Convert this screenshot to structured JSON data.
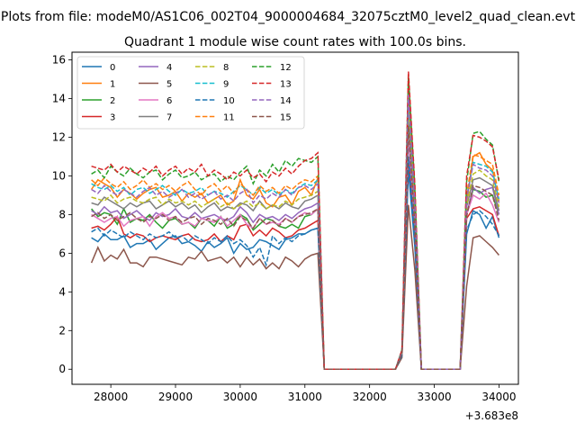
{
  "chart_data": {
    "type": "line",
    "suptitle": "Plots from file: modeM0/AS1C06_002T04_9000004684_32075cztM0_level2_quad_clean.evt",
    "title": "Quadrant 1 module wise count rates with 100.0s bins.",
    "xlabel": "",
    "ylabel": "",
    "x_offset_label": "+3.683e8",
    "xlim": [
      27400,
      34300
    ],
    "ylim": [
      -0.78,
      16.4
    ],
    "xticks": [
      28000,
      29000,
      30000,
      31000,
      32000,
      33000,
      34000
    ],
    "yticks": [
      0,
      2,
      4,
      6,
      8,
      10,
      12,
      14,
      16
    ],
    "legend_placement": "upper-left",
    "legend_columns": 4,
    "grid": false,
    "x": [
      27700,
      27800,
      27900,
      28000,
      28100,
      28200,
      28300,
      28400,
      28500,
      28600,
      28700,
      28800,
      28900,
      29000,
      29100,
      29200,
      29300,
      29400,
      29500,
      29600,
      29700,
      29800,
      29900,
      30000,
      30100,
      30200,
      30300,
      30400,
      30500,
      30600,
      30700,
      30800,
      30900,
      31000,
      31100,
      31200,
      31300,
      31400,
      31500,
      31600,
      31700,
      31800,
      31900,
      32000,
      32100,
      32200,
      32300,
      32400,
      32500,
      32600,
      32700,
      32800,
      32900,
      33000,
      33100,
      33200,
      33300,
      33400,
      33500,
      33600,
      33700,
      33800,
      33900,
      34000
    ],
    "series": [
      {
        "name": "0",
        "color": "#1f77b4",
        "dash": "solid",
        "values": [
          6.8,
          6.6,
          7.0,
          6.7,
          6.7,
          6.9,
          6.3,
          6.5,
          6.5,
          6.7,
          6.2,
          6.5,
          6.8,
          6.9,
          6.5,
          6.6,
          6.4,
          6.1,
          6.6,
          6.3,
          6.5,
          6.8,
          6.0,
          6.5,
          6.2,
          6.3,
          6.7,
          6.6,
          6.4,
          6.2,
          6.7,
          6.8,
          7.0,
          7.0,
          7.2,
          7.3,
          0,
          0,
          0,
          0,
          0,
          0,
          0,
          0,
          0,
          0,
          0,
          0,
          0.8,
          10.3,
          6.3,
          0,
          0,
          0,
          0,
          0,
          0,
          0,
          7.0,
          8.2,
          8.0,
          7.3,
          7.9,
          6.8
        ]
      },
      {
        "name": "1",
        "color": "#ff7f0e",
        "dash": "solid",
        "values": [
          9.3,
          9.8,
          9.6,
          9.4,
          8.9,
          9.3,
          9.1,
          8.8,
          9.1,
          9.3,
          9.4,
          8.9,
          9.0,
          9.2,
          8.7,
          9.1,
          8.9,
          9.1,
          8.6,
          8.8,
          9.0,
          8.5,
          8.7,
          9.8,
          9.0,
          8.8,
          9.3,
          8.6,
          8.4,
          8.9,
          9.0,
          8.5,
          9.2,
          9.4,
          9.0,
          9.9,
          0,
          0,
          0,
          0,
          0,
          0,
          0,
          0,
          0,
          0,
          0,
          0,
          0.8,
          12.8,
          8.0,
          0,
          0,
          0,
          0,
          0,
          0,
          0,
          8.6,
          11.0,
          11.2,
          10.6,
          10.3,
          8.7
        ]
      },
      {
        "name": "2",
        "color": "#2ca02c",
        "dash": "solid",
        "values": [
          8.3,
          7.9,
          8.1,
          8.0,
          7.5,
          8.3,
          7.6,
          7.8,
          7.7,
          8.0,
          7.6,
          7.3,
          7.7,
          7.8,
          7.5,
          7.6,
          7.3,
          7.8,
          7.7,
          7.4,
          7.9,
          7.3,
          7.5,
          8.0,
          7.8,
          7.2,
          7.5,
          7.8,
          7.7,
          7.4,
          7.3,
          7.5,
          7.3,
          7.9,
          8.0,
          8.3,
          0,
          0,
          0,
          0,
          0,
          0,
          0,
          0,
          0,
          0,
          0,
          0,
          0.8,
          13.2,
          7.5,
          0,
          0,
          0,
          0,
          0,
          0,
          0,
          8.0,
          9.3,
          9.2,
          8.9,
          9.0,
          8.0
        ]
      },
      {
        "name": "3",
        "color": "#d62728",
        "dash": "solid",
        "values": [
          7.3,
          7.4,
          7.2,
          7.5,
          7.9,
          7.0,
          6.8,
          7.0,
          6.9,
          6.6,
          6.8,
          6.9,
          6.8,
          6.7,
          6.9,
          7.0,
          6.7,
          6.6,
          6.7,
          7.0,
          6.6,
          6.9,
          6.7,
          7.4,
          7.5,
          6.9,
          7.2,
          6.9,
          7.3,
          7.1,
          6.8,
          6.9,
          7.2,
          7.3,
          7.5,
          7.7,
          0,
          0,
          0,
          0,
          0,
          0,
          0,
          0,
          0,
          0,
          0,
          0,
          0.8,
          11.0,
          6.8,
          0,
          0,
          0,
          0,
          0,
          0,
          0,
          7.8,
          8.3,
          8.4,
          8.2,
          8.0,
          6.9
        ]
      },
      {
        "name": "4",
        "color": "#9467bd",
        "dash": "solid",
        "values": [
          8.2,
          8.0,
          8.4,
          8.1,
          8.2,
          7.8,
          8.0,
          8.2,
          7.9,
          7.7,
          8.1,
          7.9,
          8.0,
          8.3,
          7.9,
          7.8,
          8.1,
          7.8,
          7.9,
          8.0,
          7.8,
          7.7,
          7.9,
          8.4,
          8.1,
          7.6,
          8.0,
          7.8,
          7.9,
          7.7,
          8.0,
          7.8,
          8.1,
          8.3,
          8.4,
          8.6,
          0,
          0,
          0,
          0,
          0,
          0,
          0,
          0,
          0,
          0,
          0,
          0,
          0.8,
          12.0,
          7.3,
          0,
          0,
          0,
          0,
          0,
          0,
          0,
          8.0,
          9.4,
          9.1,
          9.3,
          9.4,
          8.0
        ]
      },
      {
        "name": "5",
        "color": "#8c564b",
        "dash": "solid",
        "values": [
          5.5,
          6.3,
          5.6,
          5.9,
          5.7,
          6.2,
          5.5,
          5.5,
          5.3,
          5.8,
          5.8,
          5.7,
          5.6,
          5.5,
          5.4,
          5.8,
          5.7,
          6.1,
          5.6,
          5.7,
          5.8,
          5.5,
          5.8,
          5.3,
          5.8,
          5.4,
          5.7,
          5.2,
          5.5,
          5.2,
          5.8,
          5.6,
          5.3,
          5.7,
          5.9,
          6.0,
          0,
          0,
          0,
          0,
          0,
          0,
          0,
          0,
          0,
          0,
          0,
          0,
          0.6,
          8.5,
          5.1,
          0,
          0,
          0,
          0,
          0,
          0,
          0,
          4.3,
          6.8,
          6.9,
          6.6,
          6.3,
          5.9
        ]
      },
      {
        "name": "6",
        "color": "#e377c2",
        "dash": "solid",
        "values": [
          8.0,
          7.8,
          7.6,
          7.8,
          7.9,
          7.4,
          7.7,
          7.8,
          7.9,
          7.4,
          7.9,
          8.1,
          7.8,
          7.9,
          7.5,
          7.6,
          7.4,
          7.8,
          7.7,
          7.6,
          7.9,
          7.4,
          7.7,
          8.0,
          7.5,
          7.3,
          7.8,
          7.5,
          7.6,
          7.5,
          7.8,
          7.6,
          7.9,
          8.1,
          8.0,
          8.3,
          0,
          0,
          0,
          0,
          0,
          0,
          0,
          0,
          0,
          0,
          0,
          0,
          0.8,
          12.3,
          7.6,
          0,
          0,
          0,
          0,
          0,
          0,
          0,
          8.0,
          9.0,
          8.8,
          9.1,
          8.5,
          7.6
        ]
      },
      {
        "name": "7",
        "color": "#7f7f7f",
        "dash": "solid",
        "values": [
          8.6,
          8.5,
          8.9,
          8.7,
          8.5,
          8.3,
          8.6,
          8.4,
          8.6,
          8.7,
          8.3,
          8.5,
          8.7,
          8.4,
          8.6,
          8.3,
          8.5,
          8.1,
          8.4,
          8.6,
          8.2,
          8.4,
          8.3,
          8.6,
          8.5,
          8.2,
          8.7,
          8.3,
          8.5,
          8.3,
          8.6,
          8.4,
          8.3,
          8.7,
          8.8,
          9.0,
          0,
          0,
          0,
          0,
          0,
          0,
          0,
          0,
          0,
          0,
          0,
          0,
          0.8,
          13.0,
          7.9,
          0,
          0,
          0,
          0,
          0,
          0,
          0,
          8.4,
          9.8,
          9.9,
          9.7,
          9.5,
          8.2
        ]
      },
      {
        "name": "8",
        "color": "#bcbd22",
        "dash": "dashed",
        "values": [
          8.9,
          8.8,
          8.7,
          9.0,
          8.6,
          8.8,
          8.9,
          8.7,
          8.6,
          8.8,
          8.9,
          8.5,
          8.8,
          8.6,
          8.7,
          8.5,
          8.7,
          8.4,
          8.6,
          8.8,
          8.4,
          8.6,
          8.3,
          8.5,
          8.7,
          8.4,
          8.6,
          8.3,
          8.5,
          8.4,
          8.7,
          8.5,
          8.8,
          8.9,
          9.0,
          9.2,
          0,
          0,
          0,
          0,
          0,
          0,
          0,
          0,
          0,
          0,
          0,
          0,
          0.8,
          13.5,
          8.2,
          0,
          0,
          0,
          0,
          0,
          0,
          0,
          8.5,
          10.1,
          10.3,
          10.0,
          9.8,
          8.4
        ]
      },
      {
        "name": "9",
        "color": "#17becf",
        "dash": "dashed",
        "values": [
          9.6,
          9.4,
          9.3,
          9.5,
          9.2,
          9.4,
          9.0,
          9.3,
          9.4,
          9.1,
          9.3,
          9.5,
          9.2,
          9.0,
          9.3,
          9.1,
          9.2,
          9.4,
          9.0,
          9.2,
          9.1,
          8.9,
          9.2,
          9.5,
          9.3,
          9.0,
          9.4,
          9.1,
          9.3,
          9.0,
          9.3,
          9.1,
          9.4,
          9.6,
          9.5,
          9.8,
          0,
          0,
          0,
          0,
          0,
          0,
          0,
          0,
          0,
          0,
          0,
          0,
          0.9,
          14.0,
          8.6,
          0,
          0,
          0,
          0,
          0,
          0,
          0,
          8.9,
          10.7,
          10.6,
          10.5,
          10.2,
          8.8
        ]
      },
      {
        "name": "10",
        "color": "#1f77b4",
        "dash": "dashed",
        "values": [
          7.1,
          7.3,
          6.9,
          7.2,
          7.0,
          6.8,
          7.1,
          6.9,
          6.7,
          7.0,
          6.8,
          6.9,
          7.1,
          6.8,
          6.9,
          6.6,
          6.9,
          6.7,
          6.5,
          6.8,
          6.6,
          6.9,
          6.5,
          6.7,
          6.4,
          5.8,
          6.3,
          5.4,
          6.9,
          6.5,
          6.8,
          6.6,
          6.9,
          7.0,
          7.2,
          7.3,
          0,
          0,
          0,
          0,
          0,
          0,
          0,
          0,
          0,
          0,
          0,
          0,
          0.7,
          11.0,
          6.6,
          0,
          0,
          0,
          0,
          0,
          0,
          0,
          7.2,
          8.0,
          8.2,
          7.9,
          7.5,
          6.9
        ]
      },
      {
        "name": "11",
        "color": "#ff7f0e",
        "dash": "dashed",
        "values": [
          9.8,
          9.5,
          9.9,
          9.6,
          9.4,
          9.7,
          9.3,
          9.5,
          9.8,
          9.4,
          9.6,
          9.3,
          9.5,
          9.2,
          9.5,
          9.7,
          9.3,
          9.0,
          9.4,
          9.6,
          9.2,
          9.5,
          9.1,
          9.6,
          9.3,
          9.0,
          9.5,
          9.2,
          9.4,
          9.1,
          9.5,
          9.3,
          9.6,
          9.8,
          9.7,
          10.0,
          0,
          0,
          0,
          0,
          0,
          0,
          0,
          0,
          0,
          0,
          0,
          0,
          0.9,
          14.6,
          8.8,
          0,
          0,
          0,
          0,
          0,
          0,
          0,
          9.0,
          11.1,
          11.0,
          10.8,
          10.6,
          9.0
        ]
      },
      {
        "name": "12",
        "color": "#2ca02c",
        "dash": "dashed",
        "values": [
          10.1,
          10.3,
          9.9,
          10.5,
          10.2,
          10.0,
          10.4,
          10.1,
          9.9,
          10.2,
          10.3,
          9.8,
          10.1,
          10.3,
          9.9,
          10.0,
          10.2,
          9.8,
          10.0,
          10.1,
          9.7,
          10.0,
          9.8,
          10.2,
          10.5,
          9.6,
          10.3,
          10.0,
          10.6,
          10.2,
          10.8,
          10.5,
          10.9,
          10.8,
          10.7,
          11.0,
          0,
          0,
          0,
          0,
          0,
          0,
          0,
          0,
          0,
          0,
          0,
          0,
          1.0,
          15.2,
          9.3,
          0,
          0,
          0,
          0,
          0,
          0,
          0,
          9.7,
          12.2,
          12.3,
          11.9,
          11.6,
          9.7
        ]
      },
      {
        "name": "13",
        "color": "#d62728",
        "dash": "dashed",
        "values": [
          10.5,
          10.4,
          10.3,
          10.6,
          10.2,
          10.5,
          10.3,
          10.1,
          10.4,
          10.2,
          10.5,
          10.0,
          10.3,
          10.5,
          10.1,
          10.4,
          10.2,
          10.6,
          10.0,
          10.3,
          10.1,
          9.8,
          10.2,
          10.0,
          10.3,
          9.9,
          10.1,
          9.7,
          10.2,
          10.0,
          10.4,
          10.1,
          10.5,
          10.8,
          10.9,
          11.2,
          0,
          0,
          0,
          0,
          0,
          0,
          0,
          0,
          0,
          0,
          0,
          0,
          1.0,
          15.4,
          9.5,
          0,
          0,
          0,
          0,
          0,
          0,
          0,
          10.0,
          12.1,
          12.0,
          11.8,
          11.5,
          9.8
        ]
      },
      {
        "name": "14",
        "color": "#9467bd",
        "dash": "dashed",
        "values": [
          9.3,
          9.1,
          9.5,
          9.2,
          9.0,
          9.3,
          9.1,
          8.9,
          9.2,
          9.4,
          9.0,
          9.2,
          8.9,
          9.1,
          9.3,
          8.9,
          9.1,
          8.8,
          9.0,
          9.2,
          8.8,
          9.0,
          8.7,
          9.1,
          9.3,
          8.6,
          9.0,
          8.8,
          9.1,
          8.9,
          9.3,
          9.0,
          9.4,
          9.5,
          9.3,
          9.6,
          0,
          0,
          0,
          0,
          0,
          0,
          0,
          0,
          0,
          0,
          0,
          0,
          0.9,
          14.2,
          8.5,
          0,
          0,
          0,
          0,
          0,
          0,
          0,
          8.8,
          10.6,
          10.4,
          10.3,
          10.0,
          8.6
        ]
      },
      {
        "name": "15",
        "color": "#8c564b",
        "dash": "dashed",
        "values": [
          7.9,
          8.1,
          7.8,
          8.0,
          7.7,
          7.9,
          8.1,
          7.8,
          7.6,
          7.9,
          7.8,
          8.0,
          7.7,
          7.9,
          7.6,
          7.8,
          7.9,
          7.5,
          7.8,
          7.7,
          7.5,
          7.8,
          7.4,
          7.9,
          7.7,
          7.3,
          7.8,
          7.5,
          7.7,
          7.4,
          7.8,
          7.6,
          7.9,
          8.0,
          8.1,
          8.3,
          0,
          0,
          0,
          0,
          0,
          0,
          0,
          0,
          0,
          0,
          0,
          0,
          0.8,
          12.6,
          7.4,
          0,
          0,
          0,
          0,
          0,
          0,
          0,
          7.9,
          9.5,
          9.4,
          9.2,
          9.0,
          7.7
        ]
      }
    ]
  }
}
